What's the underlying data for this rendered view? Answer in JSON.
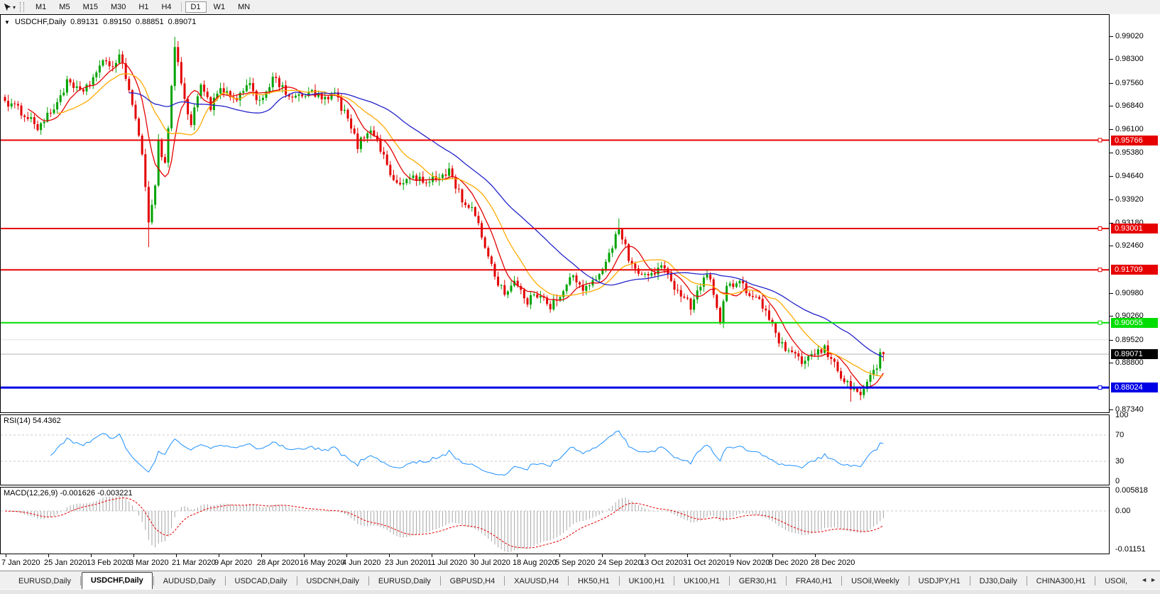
{
  "toolbar": {
    "timeframes": [
      "M1",
      "M5",
      "M15",
      "M30",
      "H1",
      "H4",
      "D1",
      "W1",
      "MN"
    ],
    "active_timeframe": "D1",
    "tool_dropdown_icon": "▾"
  },
  "chart": {
    "collapse_icon": "▼",
    "title": {
      "symbol": "USDCHF,Daily",
      "open": "0.89131",
      "high": "0.89150",
      "low": "0.88851",
      "close": "0.89071"
    },
    "price_axis_ticks": [
      "0.99020",
      "0.98300",
      "0.97560",
      "0.96840",
      "0.96100",
      "0.95380",
      "0.94640",
      "0.93920",
      "0.93180",
      "0.92460",
      "0.90980",
      "0.90260",
      "0.89520",
      "0.88800",
      "0.87340"
    ],
    "levels": [
      {
        "label": "0.95766",
        "price": 0.95766,
        "color": "#e60000",
        "text_color": "#ffffff",
        "width": 2
      },
      {
        "label": "0.93001",
        "price": 0.93001,
        "color": "#e60000",
        "text_color": "#ffffff",
        "width": 2
      },
      {
        "label": "0.91709",
        "price": 0.91709,
        "color": "#e60000",
        "text_color": "#ffffff",
        "width": 2
      },
      {
        "label": "0.90055",
        "price": 0.90055,
        "color": "#00dd00",
        "text_color": "#ffffff",
        "width": 2
      },
      {
        "label": "0.88024",
        "price": 0.88024,
        "color": "#0000e6",
        "text_color": "#ffffff",
        "width": 3
      }
    ],
    "bid": {
      "label": "0.89071",
      "price": 0.89071,
      "label_bg": "#000000",
      "text_color": "#ffffff"
    },
    "date_axis": [
      "7 Jan 2020",
      "25 Jan 2020",
      "13 Feb 2020",
      "3 Mar 2020",
      "21 Mar 2020",
      "9 Apr 2020",
      "28 Apr 2020",
      "16 May 2020",
      "4 Jun 2020",
      "23 Jun 2020",
      "11 Jul 2020",
      "30 Jul 2020",
      "18 Aug 2020",
      "5 Sep 2020",
      "24 Sep 2020",
      "13 Oct 2020",
      "31 Oct 2020",
      "19 Nov 2020",
      "8 Dec 2020",
      "28 Dec 2020"
    ]
  },
  "indicators": {
    "rsi": {
      "label": "RSI(14) 54.4362",
      "period": 14,
      "current": 54.4362,
      "line_color": "#1e90ff",
      "axis_labels": [
        "100",
        "70",
        "30",
        "0"
      ],
      "dashed_levels": [
        70,
        30
      ]
    },
    "macd": {
      "label": "MACD(12,26,9) -0.001626 -0.003221",
      "fast": 12,
      "slow": 26,
      "signal": 9,
      "current_macd": -0.001626,
      "current_signal": -0.003221,
      "histogram_color": "#a6a6a6",
      "signal_color": "#e60000",
      "axis_labels": [
        "0.005818",
        "0.00",
        "-0.01151"
      ]
    }
  },
  "chart_data": {
    "type": "candlestick",
    "symbol": "USDCHF",
    "timeframe": "Daily",
    "title": "USDCHF,Daily",
    "current_bar": {
      "open": 0.89131,
      "high": 0.8915,
      "low": 0.88851,
      "close": 0.89071
    },
    "y_axis": {
      "min": 0.8734,
      "max": 0.9902,
      "ticks": [
        0.9902,
        0.983,
        0.9756,
        0.9684,
        0.961,
        0.9538,
        0.9464,
        0.9392,
        0.9318,
        0.9246,
        0.9098,
        0.9026,
        0.8952,
        0.888,
        0.8734
      ]
    },
    "x_axis": {
      "bars_visible": 270,
      "tick_labels": [
        "7 Jan 2020",
        "25 Jan 2020",
        "13 Feb 2020",
        "3 Mar 2020",
        "21 Mar 2020",
        "9 Apr 2020",
        "28 Apr 2020",
        "16 May 2020",
        "4 Jun 2020",
        "23 Jun 2020",
        "11 Jul 2020",
        "30 Jul 2020",
        "18 Aug 2020",
        "5 Sep 2020",
        "24 Sep 2020",
        "13 Oct 2020",
        "31 Oct 2020",
        "19 Nov 2020",
        "8 Dec 2020",
        "28 Dec 2020"
      ]
    },
    "price_path": [
      [
        0,
        0.97
      ],
      [
        7,
        0.9652
      ],
      [
        10,
        0.9618
      ],
      [
        14,
        0.966
      ],
      [
        19,
        0.9755
      ],
      [
        23,
        0.9725
      ],
      [
        26,
        0.9758
      ],
      [
        31,
        0.9828
      ],
      [
        33,
        0.9805
      ],
      [
        35,
        0.984
      ],
      [
        39,
        0.97
      ],
      [
        42,
        0.952
      ],
      [
        44,
        0.933
      ],
      [
        46,
        0.944
      ],
      [
        47,
        0.957
      ],
      [
        49,
        0.95
      ],
      [
        52,
        0.9868
      ],
      [
        53,
        0.982
      ],
      [
        55,
        0.97
      ],
      [
        57,
        0.9625
      ],
      [
        60,
        0.976
      ],
      [
        63,
        0.968
      ],
      [
        66,
        0.9735
      ],
      [
        70,
        0.97
      ],
      [
        75,
        0.9745
      ],
      [
        78,
        0.9698
      ],
      [
        82,
        0.977
      ],
      [
        86,
        0.9725
      ],
      [
        90,
        0.9708
      ],
      [
        94,
        0.9726
      ],
      [
        98,
        0.97
      ],
      [
        101,
        0.9722
      ],
      [
        105,
        0.964
      ],
      [
        108,
        0.956
      ],
      [
        112,
        0.9618
      ],
      [
        116,
        0.9525
      ],
      [
        120,
        0.9432
      ],
      [
        125,
        0.9465
      ],
      [
        129,
        0.944
      ],
      [
        133,
        0.9462
      ],
      [
        136,
        0.9482
      ],
      [
        140,
        0.939
      ],
      [
        143,
        0.936
      ],
      [
        147,
        0.925
      ],
      [
        150,
        0.9152
      ],
      [
        153,
        0.91
      ],
      [
        156,
        0.9132
      ],
      [
        160,
        0.9072
      ],
      [
        164,
        0.91
      ],
      [
        167,
        0.906
      ],
      [
        170,
        0.9082
      ],
      [
        174,
        0.916
      ],
      [
        177,
        0.91
      ],
      [
        180,
        0.913
      ],
      [
        183,
        0.918
      ],
      [
        187,
        0.9272
      ],
      [
        188,
        0.93
      ],
      [
        191,
        0.921
      ],
      [
        194,
        0.9152
      ],
      [
        198,
        0.916
      ],
      [
        201,
        0.918
      ],
      [
        204,
        0.9132
      ],
      [
        207,
        0.91
      ],
      [
        210,
        0.9058
      ],
      [
        213,
        0.913
      ],
      [
        216,
        0.9152
      ],
      [
        219,
        0.9008
      ],
      [
        221,
        0.912
      ],
      [
        225,
        0.9128
      ],
      [
        228,
        0.9092
      ],
      [
        231,
        0.908
      ],
      [
        235,
        0.8992
      ],
      [
        238,
        0.8932
      ],
      [
        241,
        0.8902
      ],
      [
        244,
        0.8886
      ],
      [
        248,
        0.8906
      ],
      [
        251,
        0.8922
      ],
      [
        253,
        0.8892
      ],
      [
        256,
        0.8842
      ],
      [
        259,
        0.88
      ],
      [
        262,
        0.8786
      ],
      [
        264,
        0.882
      ],
      [
        267,
        0.8862
      ],
      [
        268,
        0.8913
      ],
      [
        269,
        0.89071
      ]
    ],
    "wick_extremes": [
      [
        44,
        "low",
        0.9242
      ],
      [
        52,
        "high",
        0.99
      ],
      [
        188,
        "high",
        0.9332
      ],
      [
        259,
        "low",
        0.8758
      ]
    ],
    "horizontal_levels": [
      0.95766,
      0.93001,
      0.91709,
      0.90055,
      0.88024
    ],
    "bid_line": 0.89071,
    "moving_averages": [
      {
        "period": 8,
        "color": "#e60000"
      },
      {
        "period": 17,
        "color": "#ffaa00"
      },
      {
        "period": 39,
        "color": "#2323cc"
      }
    ],
    "rsi": {
      "period": 14,
      "current": 54.4362,
      "scale": [
        0,
        100
      ],
      "dashed_levels": [
        70,
        30
      ]
    },
    "macd": {
      "fast": 12,
      "slow": 26,
      "signal": 9,
      "current": [
        -0.001626,
        -0.003221
      ],
      "visible_range": [
        -0.01151,
        0.005818
      ]
    }
  },
  "tabs": {
    "items": [
      {
        "label": "EURUSD,Daily",
        "active": false
      },
      {
        "label": "USDCHF,Daily",
        "active": true
      },
      {
        "label": "AUDUSD,Daily",
        "active": false
      },
      {
        "label": "USDCAD,Daily",
        "active": false
      },
      {
        "label": "USDCNH,Daily",
        "active": false
      },
      {
        "label": "EURUSD,Daily",
        "active": false
      },
      {
        "label": "GBPUSD,H4",
        "active": false
      },
      {
        "label": "XAUUSD,H4",
        "active": false
      },
      {
        "label": "HK50,H1",
        "active": false
      },
      {
        "label": "UK100,H1",
        "active": false
      },
      {
        "label": "UK100,H1",
        "active": false
      },
      {
        "label": "GER30,H1",
        "active": false
      },
      {
        "label": "FRA40,H1",
        "active": false
      },
      {
        "label": "USOil,Weekly",
        "active": false
      },
      {
        "label": "USDJPY,H1",
        "active": false
      },
      {
        "label": "DJ30,Daily",
        "active": false
      },
      {
        "label": "CHINA300,H1",
        "active": false
      },
      {
        "label": "USOil,",
        "active": false
      }
    ],
    "scroll_left_icon": "◄",
    "scroll_right_icon": "►"
  }
}
